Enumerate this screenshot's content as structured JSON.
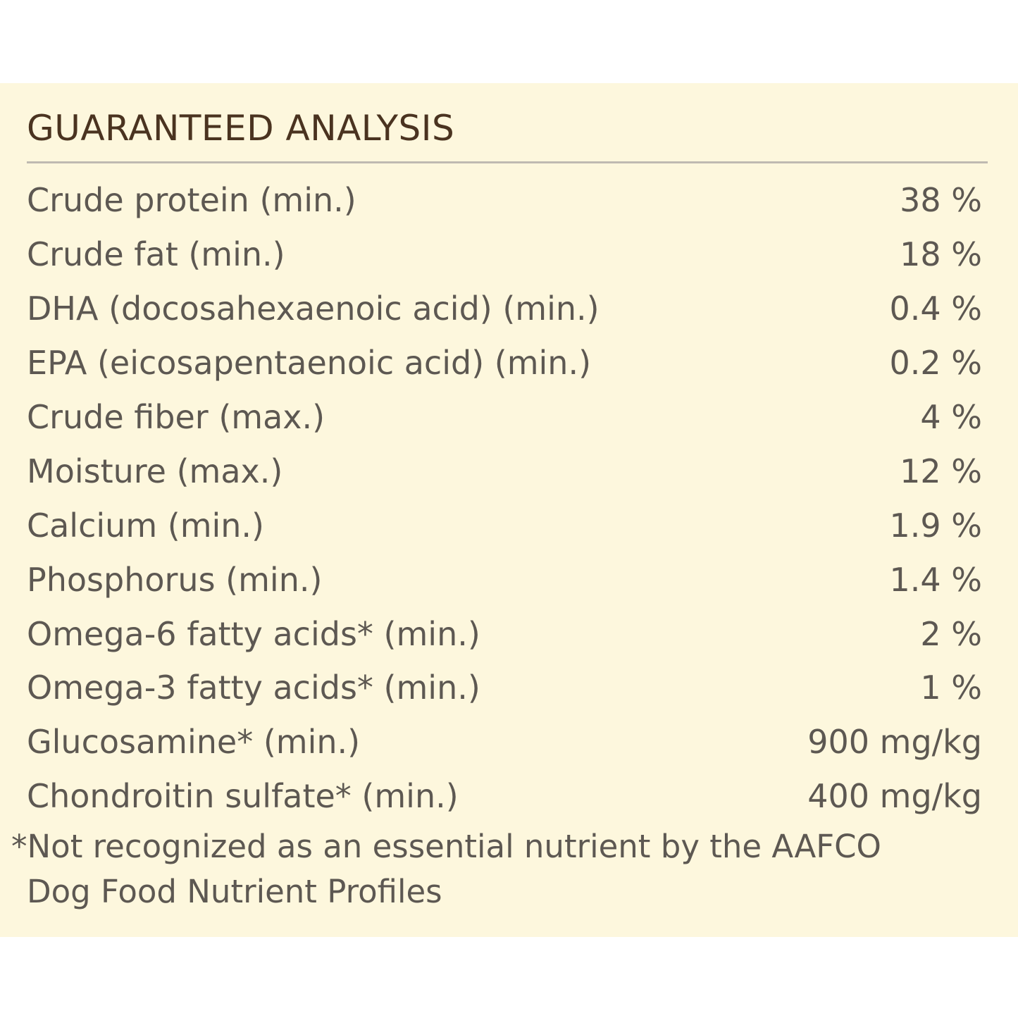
{
  "title": "GUARANTEED ANALYSIS",
  "rows": [
    {
      "label": "Crude protein (min.)",
      "value": "38 %"
    },
    {
      "label": "Crude fat (min.)",
      "value": "18 %"
    },
    {
      "label": "DHA (docosahexaenoic acid) (min.)",
      "value": "0.4 %"
    },
    {
      "label": "EPA (eicosapentaenoic acid) (min.)",
      "value": "0.2 %"
    },
    {
      "label": "Crude fiber (max.)",
      "value": "4 %"
    },
    {
      "label": "Moisture (max.)",
      "value": "12 %"
    },
    {
      "label": "Calcium (min.)",
      "value": "1.9 %"
    },
    {
      "label": "Phosphorus (min.)",
      "value": "1.4 %"
    },
    {
      "label": "Omega-6 fatty acids* (min.)",
      "value": "2 %"
    },
    {
      "label": "Omega-3 fatty acids* (min.)",
      "value": "1 %"
    },
    {
      "label": "Glucosamine* (min.)",
      "value": "900 mg/kg"
    },
    {
      "label": "Chondroitin sulfate* (min.)",
      "value": "400 mg/kg"
    }
  ],
  "footnote": {
    "line1": "*Not recognized as an essential nutrient by the AAFCO",
    "line2": "Dog Food Nutrient Profiles"
  },
  "colors": {
    "panel_background": "#fdf7dd",
    "title_text": "#4a3320",
    "body_text": "#5d5852",
    "divider": "#bfbab1"
  }
}
